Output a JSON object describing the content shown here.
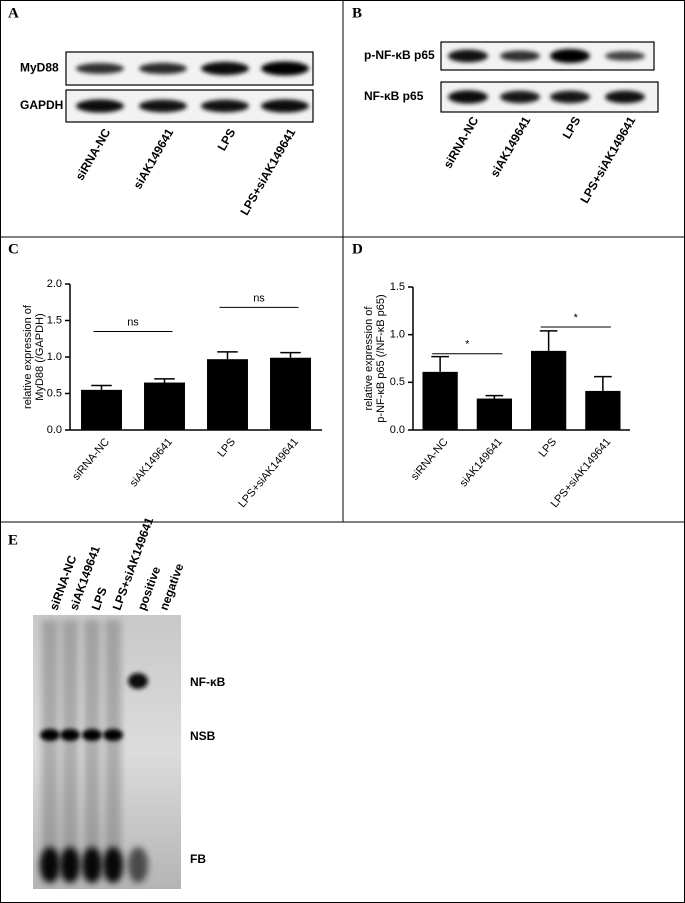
{
  "panels": {
    "A": {
      "letter": "A",
      "row_labels": [
        "MyD88",
        "GAPDH"
      ],
      "lanes": [
        "siRNA-NC",
        "siAK149641",
        "LPS",
        "LPS+siAK149641"
      ]
    },
    "B": {
      "letter": "B",
      "row_labels": [
        "p-NF-κB p65",
        "NF-κB p65"
      ],
      "lanes": [
        "siRNA-NC",
        "siAK149641",
        "LPS",
        "LPS+siAK149641"
      ]
    },
    "C": {
      "letter": "C"
    },
    "D": {
      "letter": "D"
    },
    "E": {
      "letter": "E",
      "lanes": [
        "siRNA-NC",
        "siAK149641",
        "LPS",
        "LPS+siAK149641",
        "positive",
        "negative"
      ],
      "band_labels": [
        "NF-κB",
        "NSB",
        "FB"
      ]
    }
  },
  "chart_data": [
    {
      "type": "bar",
      "y_label": [
        "relative expression of",
        "MyD88 (/GAPDH)"
      ],
      "categories": [
        "siRNA-NC",
        "siAK149641",
        "LPS",
        "LPS+siAK149641"
      ],
      "values": [
        0.55,
        0.65,
        0.97,
        0.99
      ],
      "errors": [
        0.06,
        0.05,
        0.1,
        0.07
      ],
      "color": "#000000",
      "ylim": [
        0,
        2
      ],
      "yticks": [
        {
          "value": 0,
          "label": "0.0"
        },
        {
          "value": 0.5,
          "label": "0.5"
        },
        {
          "value": 1,
          "label": "1.0"
        },
        {
          "value": 1.5,
          "label": "1.5"
        },
        {
          "value": 2,
          "label": "2.0"
        }
      ],
      "significance": [
        {
          "label": "ns",
          "y": 1.35
        },
        {
          "label": "ns",
          "y": 1.68
        }
      ]
    },
    {
      "type": "bar",
      "y_label": [
        "relative expression of",
        "p-NF-κB p65 (/NF-κB p65)"
      ],
      "categories": [
        "siRNA-NC",
        "siAK149641",
        "LPS",
        "LPS+siAK149641"
      ],
      "values": [
        0.61,
        0.33,
        0.83,
        0.41
      ],
      "errors": [
        0.16,
        0.03,
        0.21,
        0.15
      ],
      "color": "#000000",
      "ylim": [
        0,
        1.5
      ],
      "yticks": [
        {
          "value": 0,
          "label": "0.0"
        },
        {
          "value": 0.5,
          "label": "0.5"
        },
        {
          "value": 1,
          "label": "1.0"
        },
        {
          "value": 1.5,
          "label": "1.5"
        }
      ],
      "significance": [
        {
          "label": "*",
          "y": 0.8
        },
        {
          "label": "*",
          "y": 1.08
        }
      ]
    }
  ]
}
